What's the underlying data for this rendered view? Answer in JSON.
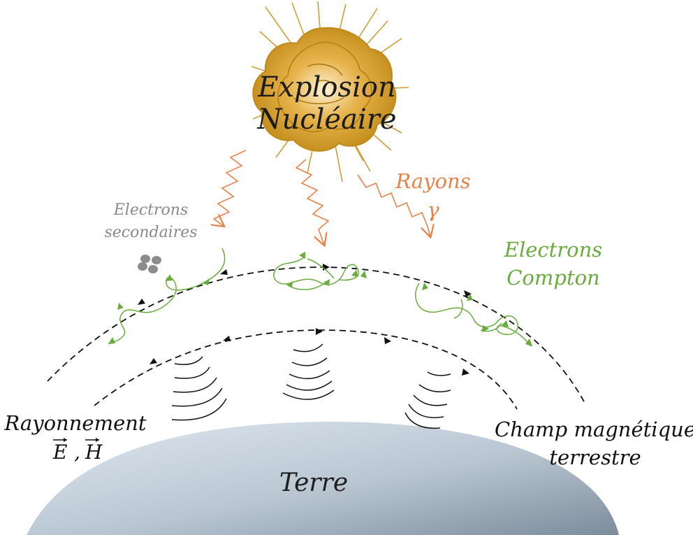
{
  "labels": {
    "explosion_line1": "Explosion",
    "explosion_line2": "Nucléaire",
    "gamma_line1": "Rayons",
    "gamma_line2": "γ",
    "secondary_line1": "Electrons",
    "secondary_line2": "secondaires",
    "compton_line1": "Electrons",
    "compton_line2": "Compton",
    "radiation_title": "Rayonnement",
    "radiation_e": "E",
    "radiation_sep": ",",
    "radiation_h": "H",
    "field_line1": "Champ magnétique",
    "field_line2": "terrestre",
    "earth": "Terre"
  },
  "colors": {
    "explosion": "#c8941e",
    "gamma": "#e6824a",
    "compton": "#6aab3e",
    "secondary_text": "#8a8a8a",
    "secondary_dots": "#8c8c8c",
    "field_lines": "#111111",
    "earth_light": "#d4e0ea",
    "earth_dark": "#8a9aaa"
  }
}
